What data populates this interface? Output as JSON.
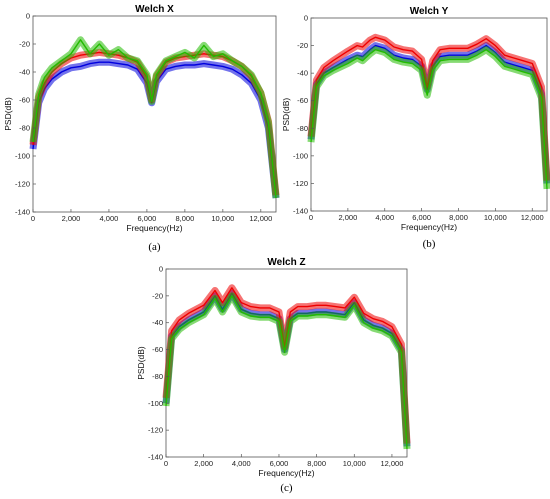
{
  "chart_data": [
    {
      "type": "line",
      "title": "Welch X",
      "caption": "(a)",
      "xlabel": "Frequency(Hz)",
      "ylabel": "PSD(dB)",
      "xlim": [
        0,
        12800
      ],
      "ylim": [
        -140,
        0
      ],
      "xticks": [
        0,
        2000,
        4000,
        6000,
        8000,
        10000,
        12000
      ],
      "xtick_labels": [
        "0",
        "2,000",
        "4,000",
        "6,000",
        "8,000",
        "10,000",
        "12,000"
      ],
      "yticks": [
        0,
        -20,
        -40,
        -60,
        -80,
        -100,
        -120,
        -140
      ],
      "ytick_labels": [
        "0",
        "-20",
        "-40",
        "-60",
        "-80",
        "-100",
        "-120",
        "-140"
      ],
      "grid": false,
      "series": [
        {
          "color": "#0000dd",
          "x": [
            0,
            300,
            600,
            1000,
            1500,
            2000,
            2500,
            3000,
            3500,
            4000,
            4500,
            5000,
            5500,
            6000,
            6250,
            6500,
            7000,
            7500,
            8000,
            8500,
            9000,
            9500,
            10000,
            10500,
            11000,
            11500,
            12000,
            12400,
            12800
          ],
          "y": [
            -95,
            -62,
            -52,
            -45,
            -40,
            -37,
            -36,
            -34,
            -33,
            -33,
            -34,
            -35,
            -38,
            -48,
            -62,
            -47,
            -38,
            -36,
            -35,
            -35,
            -34,
            -35,
            -36,
            -38,
            -42,
            -48,
            -60,
            -80,
            -130
          ]
        },
        {
          "color": "#ee0000",
          "x": [
            0,
            300,
            600,
            1000,
            1500,
            2000,
            2500,
            3000,
            3500,
            4000,
            4500,
            5000,
            5500,
            6000,
            6250,
            6500,
            7000,
            7500,
            8000,
            8500,
            9000,
            9500,
            10000,
            10500,
            11000,
            11500,
            12000,
            12400,
            12800
          ],
          "y": [
            -92,
            -58,
            -48,
            -40,
            -34,
            -30,
            -28,
            -27,
            -26,
            -27,
            -28,
            -30,
            -33,
            -44,
            -60,
            -43,
            -33,
            -30,
            -29,
            -28,
            -27,
            -28,
            -29,
            -32,
            -36,
            -43,
            -55,
            -75,
            -128
          ]
        },
        {
          "color": "#22bb00",
          "x": [
            0,
            300,
            600,
            1000,
            1500,
            2000,
            2500,
            3000,
            3500,
            4000,
            4500,
            5000,
            5500,
            6000,
            6250,
            6500,
            7000,
            7500,
            8000,
            8500,
            9000,
            9500,
            10000,
            10500,
            11000,
            11500,
            12000,
            12400,
            12800
          ],
          "y": [
            -90,
            -56,
            -44,
            -37,
            -32,
            -27,
            -17,
            -27,
            -20,
            -28,
            -24,
            -30,
            -32,
            -42,
            -61,
            -42,
            -32,
            -29,
            -26,
            -30,
            -21,
            -29,
            -27,
            -32,
            -36,
            -42,
            -55,
            -76,
            -130
          ]
        }
      ]
    },
    {
      "type": "line",
      "title": "Welch Y",
      "caption": "(b)",
      "xlabel": "Frequency(Hz)",
      "ylabel": "PSD(dB)",
      "xlim": [
        0,
        12800
      ],
      "ylim": [
        -140,
        0
      ],
      "xticks": [
        0,
        2000,
        4000,
        6000,
        8000,
        10000,
        12000
      ],
      "xtick_labels": [
        "0",
        "2,000",
        "4,000",
        "6,000",
        "8,000",
        "10,000",
        "12,000"
      ],
      "yticks": [
        0,
        -20,
        -40,
        -60,
        -80,
        -100,
        -120,
        -140
      ],
      "ytick_labels": [
        "0",
        "-20",
        "-40",
        "-60",
        "-80",
        "-100",
        "-120",
        "-140"
      ],
      "grid": false,
      "series": [
        {
          "color": "#0000dd",
          "x": [
            0,
            300,
            700,
            1200,
            2000,
            2500,
            2800,
            3200,
            3500,
            4000,
            4500,
            5000,
            5500,
            6000,
            6300,
            6600,
            7000,
            7500,
            8000,
            8500,
            9000,
            9500,
            10000,
            10500,
            11000,
            11500,
            12000,
            12500,
            12800
          ],
          "y": [
            -88,
            -48,
            -40,
            -36,
            -30,
            -27,
            -28,
            -23,
            -20,
            -22,
            -27,
            -29,
            -30,
            -35,
            -52,
            -35,
            -28,
            -27,
            -27,
            -27,
            -24,
            -20,
            -25,
            -32,
            -34,
            -36,
            -38,
            -55,
            -120
          ]
        },
        {
          "color": "#ee0000",
          "x": [
            0,
            300,
            700,
            1200,
            2000,
            2500,
            2800,
            3200,
            3500,
            4000,
            4500,
            5000,
            5500,
            6000,
            6300,
            6600,
            7000,
            7500,
            8000,
            8500,
            9000,
            9500,
            10000,
            10500,
            11000,
            11500,
            12000,
            12500,
            12800
          ],
          "y": [
            -86,
            -45,
            -36,
            -31,
            -24,
            -20,
            -21,
            -16,
            -14,
            -16,
            -21,
            -23,
            -24,
            -30,
            -50,
            -31,
            -23,
            -22,
            -22,
            -22,
            -19,
            -15,
            -20,
            -27,
            -29,
            -31,
            -33,
            -50,
            -118
          ]
        },
        {
          "color": "#22bb00",
          "x": [
            0,
            300,
            700,
            1200,
            2000,
            2500,
            2800,
            3200,
            3500,
            4000,
            4500,
            5000,
            5500,
            6000,
            6300,
            6600,
            7000,
            7500,
            8000,
            8500,
            9000,
            9500,
            10000,
            10500,
            11000,
            11500,
            12000,
            12500,
            12800
          ],
          "y": [
            -90,
            -50,
            -42,
            -38,
            -33,
            -29,
            -31,
            -26,
            -23,
            -25,
            -30,
            -32,
            -33,
            -38,
            -56,
            -38,
            -31,
            -30,
            -30,
            -30,
            -27,
            -23,
            -28,
            -35,
            -37,
            -39,
            -41,
            -58,
            -124
          ]
        }
      ]
    },
    {
      "type": "line",
      "title": "Welch Z",
      "caption": "(c)",
      "xlabel": "Frequency(Hz)",
      "ylabel": "PSD(dB)",
      "xlim": [
        0,
        12800
      ],
      "ylim": [
        -140,
        0
      ],
      "xticks": [
        0,
        2000,
        4000,
        6000,
        8000,
        10000,
        12000
      ],
      "xtick_labels": [
        "0",
        "2,000",
        "4,000",
        "6,000",
        "8,000",
        "10,000",
        "12,000"
      ],
      "yticks": [
        0,
        -20,
        -40,
        -60,
        -80,
        -100,
        -120,
        -140
      ],
      "ytick_labels": [
        "0",
        "-20",
        "-40",
        "-60",
        "-80",
        "-100",
        "-120",
        "-140"
      ],
      "grid": false,
      "series": [
        {
          "color": "#0000dd",
          "x": [
            0,
            300,
            700,
            1200,
            2000,
            2600,
            3000,
            3500,
            4000,
            4500,
            5000,
            5500,
            6000,
            6300,
            6600,
            7000,
            7500,
            8000,
            8500,
            9000,
            9500,
            10000,
            10500,
            11000,
            11500,
            12000,
            12500,
            12800
          ],
          "y": [
            -100,
            -50,
            -43,
            -38,
            -32,
            -20,
            -30,
            -18,
            -30,
            -33,
            -34,
            -34,
            -37,
            -60,
            -37,
            -33,
            -33,
            -32,
            -32,
            -33,
            -34,
            -25,
            -38,
            -42,
            -44,
            -48,
            -60,
            -132
          ]
        },
        {
          "color": "#ee0000",
          "x": [
            0,
            300,
            700,
            1200,
            2000,
            2600,
            3000,
            3500,
            4000,
            4500,
            5000,
            5500,
            6000,
            6300,
            6600,
            7000,
            7500,
            8000,
            8500,
            9000,
            9500,
            10000,
            10500,
            11000,
            11500,
            12000,
            12500,
            12800
          ],
          "y": [
            -96,
            -46,
            -38,
            -33,
            -27,
            -16,
            -25,
            -14,
            -25,
            -28,
            -29,
            -29,
            -32,
            -58,
            -32,
            -28,
            -28,
            -27,
            -27,
            -28,
            -29,
            -21,
            -33,
            -37,
            -39,
            -43,
            -56,
            -130
          ]
        },
        {
          "color": "#22bb00",
          "x": [
            0,
            300,
            700,
            1200,
            2000,
            2600,
            3000,
            3500,
            4000,
            4500,
            5000,
            5500,
            6000,
            6300,
            6600,
            7000,
            7500,
            8000,
            8500,
            9000,
            9500,
            10000,
            10500,
            11000,
            11500,
            12000,
            12500,
            12800
          ],
          "y": [
            -102,
            -52,
            -45,
            -40,
            -34,
            -22,
            -32,
            -20,
            -32,
            -35,
            -36,
            -36,
            -39,
            -62,
            -39,
            -35,
            -35,
            -34,
            -34,
            -35,
            -36,
            -27,
            -40,
            -44,
            -46,
            -50,
            -62,
            -134
          ]
        }
      ]
    }
  ]
}
